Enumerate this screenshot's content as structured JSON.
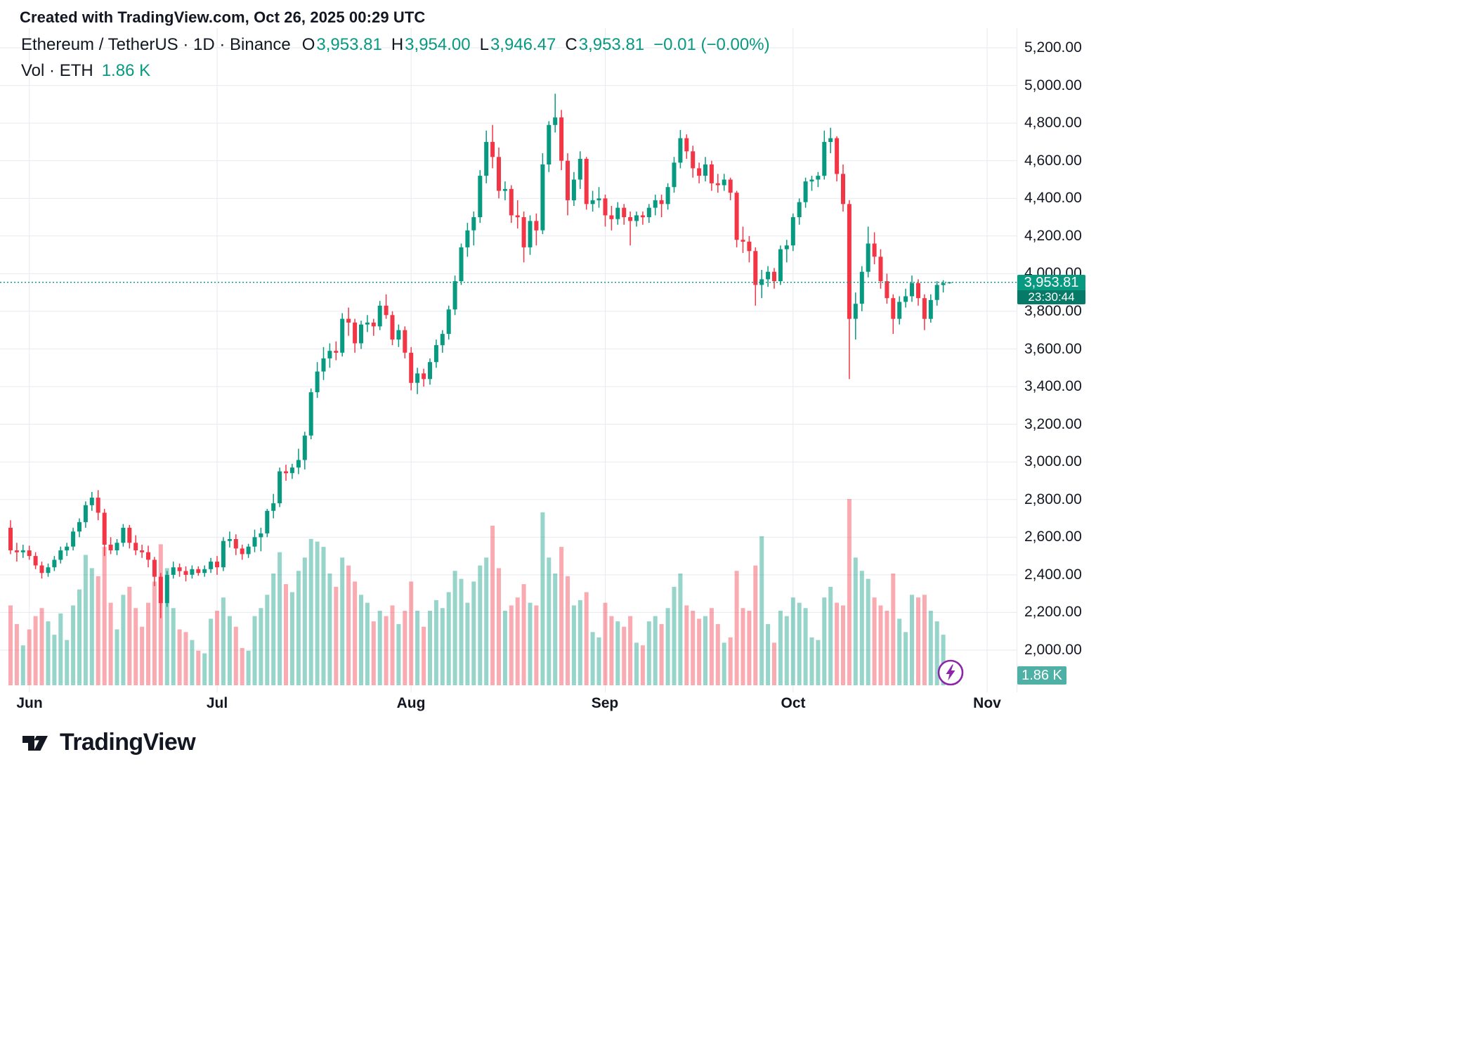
{
  "meta": {
    "created_line": "Created with TradingView.com, Oct 26, 2025 00:29 UTC"
  },
  "header": {
    "title": "Ethereum / TetherUS · 1D · Binance",
    "ohlc": [
      {
        "label": "O",
        "value": "3,953.81"
      },
      {
        "label": "H",
        "value": "3,954.00"
      },
      {
        "label": "L",
        "value": "3,946.47"
      },
      {
        "label": "C",
        "value": "3,953.81"
      }
    ],
    "change": "−0.01 (−0.00%)",
    "volume_label": "Vol · ETH",
    "volume_value": "1.86 K"
  },
  "price_scale": {
    "min": 2000,
    "max": 5200,
    "step": 200,
    "ticks": [
      {
        "value": 5200,
        "label": "5,200.00"
      },
      {
        "value": 5000,
        "label": "5,000.00"
      },
      {
        "value": 4800,
        "label": "4,800.00"
      },
      {
        "value": 4600,
        "label": "4,600.00"
      },
      {
        "value": 4400,
        "label": "4,400.00"
      },
      {
        "value": 4200,
        "label": "4,200.00"
      },
      {
        "value": 4000,
        "label": "4,000.00"
      },
      {
        "value": 3800,
        "label": "3,800.00"
      },
      {
        "value": 3600,
        "label": "3,600.00"
      },
      {
        "value": 3400,
        "label": "3,400.00"
      },
      {
        "value": 3200,
        "label": "3,200.00"
      },
      {
        "value": 3000,
        "label": "3,000.00"
      },
      {
        "value": 2800,
        "label": "2,800.00"
      },
      {
        "value": 2600,
        "label": "2,600.00"
      },
      {
        "value": 2400,
        "label": "2,400.00"
      },
      {
        "value": 2200,
        "label": "2,200.00"
      },
      {
        "value": 2000,
        "label": "2,000.00"
      }
    ]
  },
  "time_scale": {
    "months": [
      {
        "label": "Jun",
        "index": 3
      },
      {
        "label": "Jul",
        "index": 33
      },
      {
        "label": "Aug",
        "index": 64
      },
      {
        "label": "Sep",
        "index": 95
      },
      {
        "label": "Oct",
        "index": 125
      },
      {
        "label": "Nov",
        "index": 156
      }
    ]
  },
  "last": {
    "close": 3953.81,
    "price_label": "3,953.81",
    "countdown": "23:30:44",
    "volume_label": "1.86 K"
  },
  "branding": {
    "logo_text": "TradingView"
  },
  "colors": {
    "up": "#089981",
    "down": "#f23645",
    "vol_up": "rgba(8,153,129,0.42)",
    "vol_down": "rgba(242,54,69,0.42)",
    "grid": "#e7eaf0",
    "text": "#131722",
    "badge_green": "#089981",
    "countdown_green": "#067a67",
    "vol_badge": "#4fb0a5",
    "flash_purple": "#8e24aa"
  },
  "chart_data": {
    "type": "candlestick",
    "title": "Ethereum / TetherUS · 1D · Binance",
    "symbol": "Ethereum / TetherUS",
    "interval": "1D",
    "exchange": "Binance",
    "start_date": "2025-05-29",
    "end_date": "2025-10-26",
    "ylim": [
      2000,
      5200
    ],
    "grid": true,
    "volume_overlay": true,
    "last_price_line": 3953.81,
    "columns": [
      "open",
      "high",
      "low",
      "close",
      "volume"
    ],
    "candles": [
      [
        2650,
        2690,
        2510,
        2530,
        300
      ],
      [
        2530,
        2570,
        2470,
        2520,
        230
      ],
      [
        2520,
        2560,
        2490,
        2530,
        150
      ],
      [
        2530,
        2555,
        2480,
        2500,
        210
      ],
      [
        2500,
        2520,
        2430,
        2450,
        260
      ],
      [
        2450,
        2470,
        2380,
        2410,
        290
      ],
      [
        2410,
        2460,
        2390,
        2440,
        240
      ],
      [
        2440,
        2500,
        2420,
        2480,
        190
      ],
      [
        2480,
        2550,
        2460,
        2530,
        270
      ],
      [
        2530,
        2570,
        2500,
        2550,
        170
      ],
      [
        2550,
        2650,
        2530,
        2630,
        300
      ],
      [
        2630,
        2700,
        2600,
        2680,
        360
      ],
      [
        2680,
        2790,
        2650,
        2770,
        490
      ],
      [
        2770,
        2840,
        2740,
        2810,
        440
      ],
      [
        2810,
        2850,
        2690,
        2730,
        410
      ],
      [
        2730,
        2750,
        2500,
        2560,
        520
      ],
      [
        2560,
        2600,
        2510,
        2530,
        310
      ],
      [
        2530,
        2590,
        2505,
        2570,
        210
      ],
      [
        2570,
        2670,
        2550,
        2650,
        340
      ],
      [
        2650,
        2665,
        2540,
        2570,
        370
      ],
      [
        2570,
        2610,
        2505,
        2530,
        290
      ],
      [
        2530,
        2560,
        2490,
        2520,
        220
      ],
      [
        2520,
        2555,
        2440,
        2480,
        310
      ],
      [
        2480,
        2495,
        2340,
        2390,
        390
      ],
      [
        2390,
        2410,
        2170,
        2250,
        530
      ],
      [
        2250,
        2420,
        2230,
        2400,
        440
      ],
      [
        2400,
        2470,
        2380,
        2440,
        290
      ],
      [
        2440,
        2460,
        2390,
        2420,
        210
      ],
      [
        2420,
        2445,
        2365,
        2400,
        200
      ],
      [
        2400,
        2450,
        2380,
        2430,
        170
      ],
      [
        2430,
        2445,
        2395,
        2410,
        130
      ],
      [
        2410,
        2450,
        2390,
        2430,
        120
      ],
      [
        2430,
        2490,
        2410,
        2470,
        250
      ],
      [
        2470,
        2500,
        2400,
        2440,
        280
      ],
      [
        2440,
        2600,
        2420,
        2580,
        330
      ],
      [
        2580,
        2630,
        2545,
        2590,
        260
      ],
      [
        2590,
        2615,
        2505,
        2540,
        220
      ],
      [
        2540,
        2560,
        2480,
        2510,
        140
      ],
      [
        2510,
        2565,
        2490,
        2550,
        130
      ],
      [
        2550,
        2640,
        2520,
        2600,
        260
      ],
      [
        2600,
        2650,
        2525,
        2620,
        290
      ],
      [
        2620,
        2750,
        2600,
        2740,
        340
      ],
      [
        2740,
        2830,
        2700,
        2780,
        420
      ],
      [
        2780,
        2970,
        2760,
        2950,
        500
      ],
      [
        2950,
        2985,
        2900,
        2940,
        380
      ],
      [
        2940,
        2990,
        2910,
        2970,
        350
      ],
      [
        2970,
        3070,
        2935,
        3010,
        430
      ],
      [
        3010,
        3160,
        2960,
        3140,
        480
      ],
      [
        3140,
        3390,
        3120,
        3370,
        550
      ],
      [
        3370,
        3530,
        3340,
        3480,
        540
      ],
      [
        3480,
        3610,
        3435,
        3550,
        520
      ],
      [
        3550,
        3630,
        3500,
        3590,
        420
      ],
      [
        3590,
        3640,
        3540,
        3580,
        370
      ],
      [
        3580,
        3790,
        3560,
        3760,
        480
      ],
      [
        3760,
        3820,
        3670,
        3740,
        450
      ],
      [
        3740,
        3760,
        3580,
        3630,
        390
      ],
      [
        3630,
        3750,
        3600,
        3730,
        340
      ],
      [
        3730,
        3780,
        3690,
        3740,
        310
      ],
      [
        3740,
        3760,
        3670,
        3720,
        240
      ],
      [
        3720,
        3855,
        3700,
        3830,
        280
      ],
      [
        3830,
        3890,
        3760,
        3780,
        260
      ],
      [
        3780,
        3800,
        3620,
        3650,
        300
      ],
      [
        3650,
        3730,
        3610,
        3700,
        230
      ],
      [
        3700,
        3720,
        3550,
        3580,
        280
      ],
      [
        3580,
        3610,
        3380,
        3420,
        390
      ],
      [
        3420,
        3500,
        3360,
        3470,
        280
      ],
      [
        3470,
        3495,
        3400,
        3440,
        220
      ],
      [
        3440,
        3550,
        3410,
        3530,
        280
      ],
      [
        3530,
        3650,
        3500,
        3620,
        320
      ],
      [
        3620,
        3700,
        3580,
        3680,
        290
      ],
      [
        3680,
        3830,
        3650,
        3810,
        350
      ],
      [
        3810,
        3990,
        3780,
        3960,
        430
      ],
      [
        3960,
        4160,
        3940,
        4140,
        400
      ],
      [
        4140,
        4270,
        4090,
        4230,
        310
      ],
      [
        4230,
        4330,
        4150,
        4300,
        390
      ],
      [
        4300,
        4550,
        4270,
        4520,
        450
      ],
      [
        4520,
        4760,
        4480,
        4700,
        480
      ],
      [
        4700,
        4790,
        4560,
        4620,
        600
      ],
      [
        4620,
        4670,
        4400,
        4440,
        440
      ],
      [
        4440,
        4490,
        4390,
        4450,
        280
      ],
      [
        4450,
        4470,
        4270,
        4310,
        300
      ],
      [
        4310,
        4390,
        4240,
        4300,
        330
      ],
      [
        4300,
        4330,
        4060,
        4140,
        380
      ],
      [
        4140,
        4310,
        4100,
        4280,
        310
      ],
      [
        4280,
        4320,
        4150,
        4230,
        300
      ],
      [
        4230,
        4640,
        4210,
        4580,
        650
      ],
      [
        4580,
        4810,
        4540,
        4790,
        480
      ],
      [
        4790,
        4956,
        4750,
        4830,
        420
      ],
      [
        4830,
        4870,
        4550,
        4600,
        520
      ],
      [
        4600,
        4640,
        4310,
        4390,
        410
      ],
      [
        4390,
        4540,
        4360,
        4500,
        300
      ],
      [
        4500,
        4650,
        4450,
        4610,
        320
      ],
      [
        4610,
        4620,
        4340,
        4370,
        350
      ],
      [
        4370,
        4440,
        4330,
        4390,
        200
      ],
      [
        4390,
        4460,
        4350,
        4400,
        180
      ],
      [
        4400,
        4420,
        4250,
        4310,
        310
      ],
      [
        4310,
        4360,
        4230,
        4290,
        260
      ],
      [
        4290,
        4380,
        4260,
        4350,
        240
      ],
      [
        4350,
        4370,
        4260,
        4300,
        220
      ],
      [
        4300,
        4330,
        4150,
        4280,
        260
      ],
      [
        4280,
        4330,
        4250,
        4310,
        160
      ],
      [
        4310,
        4330,
        4260,
        4300,
        150
      ],
      [
        4300,
        4370,
        4270,
        4350,
        240
      ],
      [
        4350,
        4420,
        4310,
        4390,
        260
      ],
      [
        4390,
        4420,
        4300,
        4370,
        230
      ],
      [
        4370,
        4480,
        4340,
        4460,
        290
      ],
      [
        4460,
        4620,
        4430,
        4590,
        370
      ],
      [
        4590,
        4763,
        4560,
        4720,
        420
      ],
      [
        4720,
        4740,
        4610,
        4650,
        300
      ],
      [
        4650,
        4680,
        4510,
        4560,
        280
      ],
      [
        4560,
        4590,
        4480,
        4520,
        250
      ],
      [
        4520,
        4620,
        4490,
        4580,
        260
      ],
      [
        4580,
        4600,
        4440,
        4480,
        290
      ],
      [
        4480,
        4530,
        4430,
        4470,
        230
      ],
      [
        4470,
        4530,
        4440,
        4500,
        160
      ],
      [
        4500,
        4510,
        4390,
        4430,
        180
      ],
      [
        4430,
        4440,
        4140,
        4180,
        430
      ],
      [
        4180,
        4250,
        4110,
        4170,
        290
      ],
      [
        4170,
        4200,
        4060,
        4120,
        280
      ],
      [
        4120,
        4140,
        3830,
        3940,
        450
      ],
      [
        3940,
        4020,
        3870,
        3970,
        560
      ],
      [
        3970,
        4040,
        3930,
        4010,
        230
      ],
      [
        4010,
        4030,
        3920,
        3960,
        160
      ],
      [
        3960,
        4150,
        3940,
        4130,
        280
      ],
      [
        4130,
        4180,
        4060,
        4150,
        260
      ],
      [
        4150,
        4320,
        4120,
        4300,
        330
      ],
      [
        4300,
        4400,
        4260,
        4380,
        310
      ],
      [
        4380,
        4510,
        4350,
        4490,
        290
      ],
      [
        4490,
        4520,
        4440,
        4500,
        180
      ],
      [
        4500,
        4540,
        4460,
        4520,
        170
      ],
      [
        4520,
        4760,
        4500,
        4700,
        330
      ],
      [
        4700,
        4775,
        4640,
        4720,
        370
      ],
      [
        4720,
        4730,
        4490,
        4530,
        310
      ],
      [
        4530,
        4580,
        4330,
        4370,
        300
      ],
      [
        4370,
        4390,
        3440,
        3760,
        700
      ],
      [
        3760,
        3900,
        3650,
        3840,
        480
      ],
      [
        3840,
        4040,
        3800,
        4010,
        430
      ],
      [
        4010,
        4250,
        3980,
        4160,
        400
      ],
      [
        4160,
        4220,
        4050,
        4090,
        330
      ],
      [
        4090,
        4130,
        3920,
        3960,
        300
      ],
      [
        3960,
        4000,
        3840,
        3870,
        280
      ],
      [
        3870,
        3890,
        3680,
        3760,
        420
      ],
      [
        3760,
        3880,
        3730,
        3850,
        250
      ],
      [
        3850,
        3920,
        3820,
        3880,
        200
      ],
      [
        3880,
        3990,
        3850,
        3950,
        340
      ],
      [
        3950,
        3970,
        3830,
        3870,
        330
      ],
      [
        3870,
        3890,
        3700,
        3760,
        340
      ],
      [
        3760,
        3890,
        3740,
        3860,
        280
      ],
      [
        3860,
        3960,
        3830,
        3940,
        240
      ],
      [
        3940,
        3965,
        3900,
        3950,
        190
      ],
      [
        3953.81,
        3954.0,
        3946.47,
        3953.81,
        1.86
      ]
    ]
  }
}
